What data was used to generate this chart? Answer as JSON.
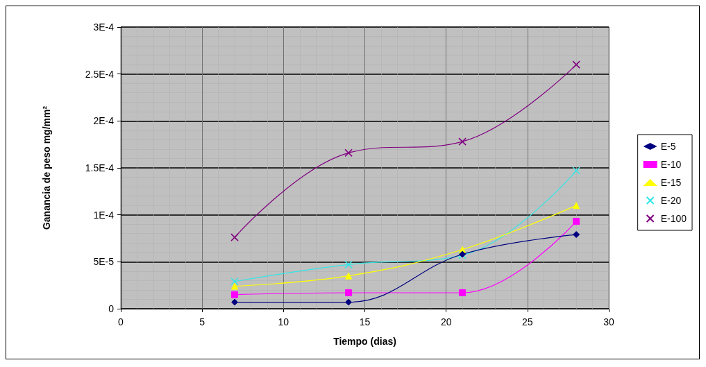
{
  "chart_data": {
    "type": "line",
    "xlabel": "Tiempo (dias)",
    "ylabel": "Ganancia de peso mg/mm²",
    "x": [
      7,
      14,
      21,
      28
    ],
    "series": [
      {
        "name": "E-5",
        "color": "#000080",
        "marker": "diamond",
        "values": [
          7e-06,
          7e-06,
          5.8e-05,
          7.9e-05
        ]
      },
      {
        "name": "E-10",
        "color": "#ff00ff",
        "marker": "square",
        "values": [
          1.5e-05,
          1.7e-05,
          1.7e-05,
          9.3e-05
        ]
      },
      {
        "name": "E-15",
        "color": "#ffff00",
        "marker": "triangle",
        "values": [
          2.4e-05,
          3.5e-05,
          6.3e-05,
          0.00011
        ]
      },
      {
        "name": "E-20",
        "color": "#33e6e6",
        "marker": "cross",
        "values": [
          2.9e-05,
          4.7e-05,
          5.7e-05,
          0.000147
        ]
      },
      {
        "name": "E-100",
        "color": "#800080",
        "marker": "cross",
        "values": [
          7.6e-05,
          0.000166,
          0.000178,
          0.00026
        ]
      }
    ],
    "xlim": [
      0,
      30
    ],
    "xticks": [
      0,
      5,
      10,
      15,
      20,
      25,
      30
    ],
    "ylim": [
      0,
      0.0003
    ],
    "yticks": [
      {
        "value": 0,
        "label": "0"
      },
      {
        "value": 5e-05,
        "label": "5E-5"
      },
      {
        "value": 0.0001,
        "label": "1E-4"
      },
      {
        "value": 0.00015,
        "label": "1.5E-4"
      },
      {
        "value": 0.0002,
        "label": "2E-4"
      },
      {
        "value": 0.00025,
        "label": "2.5E-4"
      },
      {
        "value": 0.0003,
        "label": "3E-4"
      }
    ],
    "grid": true,
    "legend": "right",
    "line_style": "solid"
  }
}
